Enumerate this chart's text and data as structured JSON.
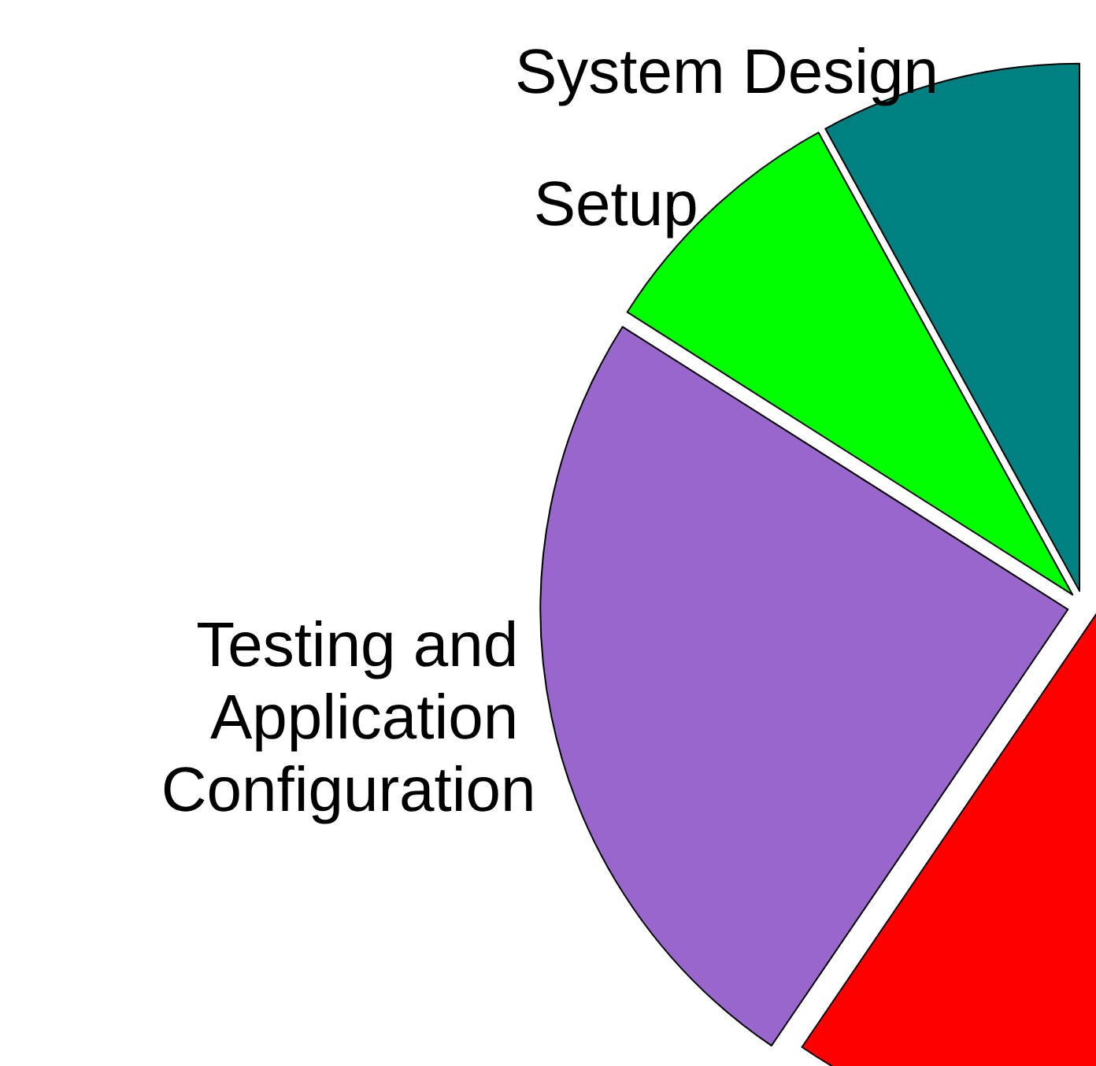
{
  "chart_data": {
    "type": "pie",
    "categories": [
      "System Design",
      "Setup",
      "Testing and Application Configuration",
      null
    ],
    "values": [
      8,
      8,
      24.5,
      59.5
    ],
    "colors": [
      "#008080",
      "#00ff00",
      "#9966cc",
      "#ff0000"
    ]
  }
}
